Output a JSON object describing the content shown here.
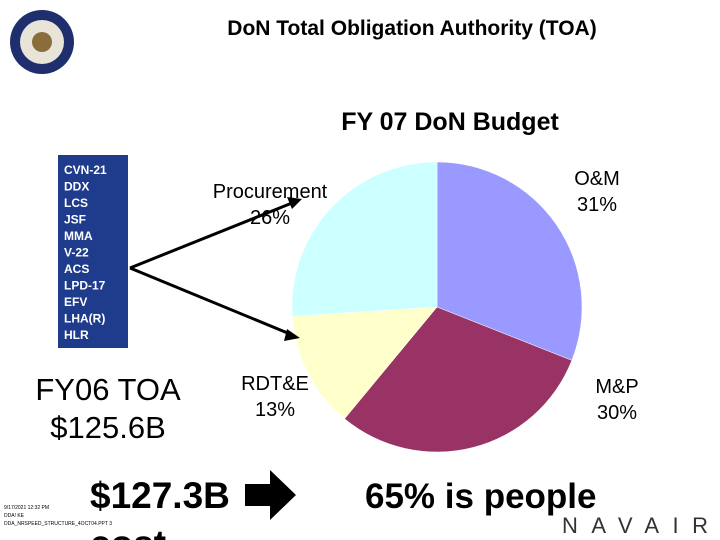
{
  "header": {
    "title": "DoN Total Obligation Authority (TOA)"
  },
  "chart_data": {
    "type": "pie",
    "title": "FY 07 DoN Budget",
    "categories": [
      "O&M",
      "M&P",
      "RDT&E",
      "Procurement"
    ],
    "values": [
      31,
      30,
      13,
      26
    ],
    "value_labels": [
      "31%",
      "30%",
      "13%",
      "26%"
    ],
    "colors": [
      "#9999ff",
      "#993366",
      "#ffffcc",
      "#ccffff"
    ]
  },
  "programs": [
    "CVN-21",
    "DDX",
    "LCS",
    "JSF",
    "MMA",
    "V-22",
    "ACS",
    "LPD-17",
    "EFV",
    "LHA(R)",
    "HLR"
  ],
  "callouts": {
    "fy06_label": "FY06 TOA",
    "fy06_value": "$125.6B",
    "fy07_value": "$127.3B",
    "cost": "cost",
    "people": "65% is people"
  },
  "footer": {
    "lines": [
      "9/17/2021 12:32 PM",
      "DDA! KE",
      "DDA_NRSPEED_STRUCTURE_4OCT04.PPT 3"
    ],
    "logo": "NAVAIR"
  }
}
